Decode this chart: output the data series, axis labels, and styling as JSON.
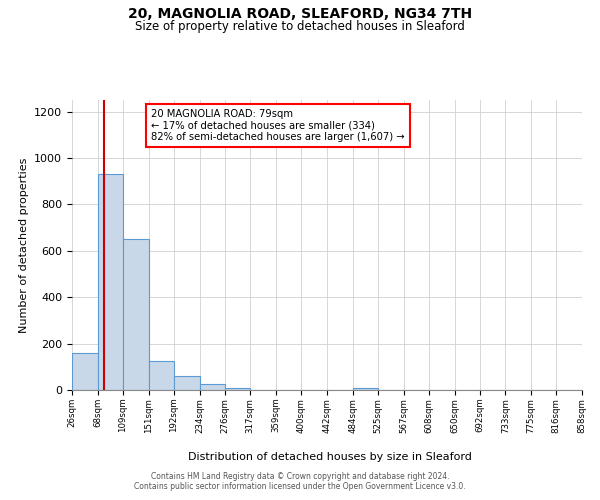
{
  "title": "20, MAGNOLIA ROAD, SLEAFORD, NG34 7TH",
  "subtitle": "Size of property relative to detached houses in Sleaford",
  "xlabel": "Distribution of detached houses by size in Sleaford",
  "ylabel": "Number of detached properties",
  "bar_edges": [
    26,
    68,
    109,
    151,
    192,
    234,
    276,
    317,
    359,
    400,
    442,
    484,
    525,
    567,
    608,
    650,
    692,
    733,
    775,
    816,
    858
  ],
  "bar_heights": [
    160,
    930,
    650,
    125,
    62,
    28,
    10,
    0,
    0,
    0,
    0,
    10,
    0,
    0,
    0,
    0,
    0,
    0,
    0,
    0
  ],
  "bar_color": "#c8d8e8",
  "bar_edge_color": "#5b9bd5",
  "property_size": 79,
  "red_line_color": "#cc0000",
  "annotation_line1": "20 MAGNOLIA ROAD: 79sqm",
  "annotation_line2": "← 17% of detached houses are smaller (334)",
  "annotation_line3": "82% of semi-detached houses are larger (1,607) →",
  "ylim": [
    0,
    1250
  ],
  "yticks": [
    0,
    200,
    400,
    600,
    800,
    1000,
    1200
  ],
  "background_color": "#ffffff",
  "grid_color": "#d0d0d0",
  "footer_line1": "Contains HM Land Registry data © Crown copyright and database right 2024.",
  "footer_line2": "Contains public sector information licensed under the Open Government Licence v3.0."
}
